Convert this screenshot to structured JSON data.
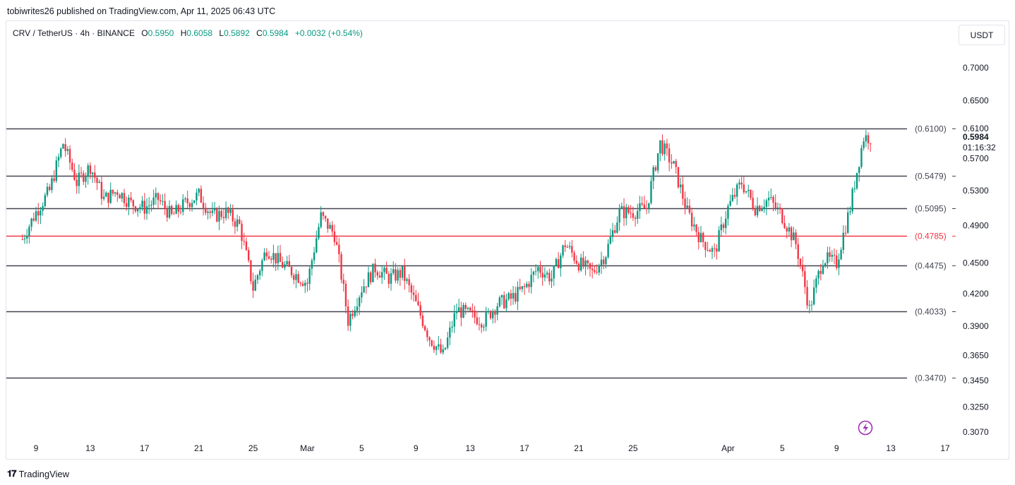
{
  "header": {
    "byline": "tobiwrites26 published on TradingView.com, Apr 11, 2025 06:43 UTC"
  },
  "legend": {
    "symbol": "CRV / TetherUS · 4h · BINANCE",
    "o_label": "O",
    "o": "0.5950",
    "h_label": "H",
    "h": "0.6058",
    "l_label": "L",
    "l": "0.5892",
    "c_label": "C",
    "c": "0.5984",
    "change": "+0.0032 (+0.54%)"
  },
  "currency_button": "USDT",
  "footer": {
    "logo_mark": "𝟏𝟕",
    "brand": "TradingView"
  },
  "colors": {
    "up": "#089981",
    "down": "#f23645",
    "level": "#434651",
    "key_level": "#f23645",
    "flash": "#9c27b0"
  },
  "chart_data": {
    "type": "candlestick",
    "symbol": "CRV / TetherUS",
    "timeframe": "4h",
    "exchange": "BINANCE",
    "y_axis": {
      "scale": "log",
      "range": [
        0.292,
        0.745
      ],
      "ticks": [
        "0.7000",
        "0.6500",
        "0.6100",
        "0.5700",
        "0.5300",
        "0.4900",
        "0.4500",
        "0.4200",
        "0.3900",
        "0.3650",
        "0.3450",
        "0.3250",
        "0.3070"
      ]
    },
    "x_axis": {
      "start_date": "2025-02-08",
      "end_date": "2025-04-18",
      "ticks": [
        {
          "label": "9",
          "date": "2025-02-09"
        },
        {
          "label": "13",
          "date": "2025-02-13"
        },
        {
          "label": "17",
          "date": "2025-02-17"
        },
        {
          "label": "21",
          "date": "2025-02-21"
        },
        {
          "label": "25",
          "date": "2025-02-25"
        },
        {
          "label": "Mar",
          "date": "2025-03-01"
        },
        {
          "label": "5",
          "date": "2025-03-05"
        },
        {
          "label": "9",
          "date": "2025-03-09"
        },
        {
          "label": "13",
          "date": "2025-03-13"
        },
        {
          "label": "17",
          "date": "2025-03-17"
        },
        {
          "label": "21",
          "date": "2025-03-21"
        },
        {
          "label": "25",
          "date": "2025-03-25"
        },
        {
          "label": "Apr",
          "date": "2025-04-01"
        },
        {
          "label": "5",
          "date": "2025-04-05"
        },
        {
          "label": "9",
          "date": "2025-04-09"
        },
        {
          "label": "13",
          "date": "2025-04-13"
        },
        {
          "label": "17",
          "date": "2025-04-17"
        }
      ]
    },
    "levels": [
      {
        "value": 0.61,
        "label": "(0.6100)",
        "color": "#434651"
      },
      {
        "value": 0.5479,
        "label": "(0.5479)",
        "color": "#434651"
      },
      {
        "value": 0.5095,
        "label": "(0.5095)",
        "color": "#434651"
      },
      {
        "value": 0.4785,
        "label": "(0.4785)",
        "color": "#f23645"
      },
      {
        "value": 0.4475,
        "label": "(0.4475)",
        "color": "#434651"
      },
      {
        "value": 0.4033,
        "label": "(0.4033)",
        "color": "#434651"
      },
      {
        "value": 0.347,
        "label": "(0.3470)",
        "color": "#434651"
      }
    ],
    "last_price": "0.5984",
    "countdown": "01:16:32",
    "path_anchors": [
      {
        "date": "2025-02-08",
        "price": 0.475
      },
      {
        "date": "2025-02-09",
        "price": 0.505
      },
      {
        "date": "2025-02-10",
        "price": 0.53
      },
      {
        "date": "2025-02-11",
        "price": 0.59
      },
      {
        "date": "2025-02-12",
        "price": 0.54
      },
      {
        "date": "2025-02-13",
        "price": 0.56
      },
      {
        "date": "2025-02-14",
        "price": 0.52
      },
      {
        "date": "2025-02-15",
        "price": 0.53
      },
      {
        "date": "2025-02-16",
        "price": 0.515
      },
      {
        "date": "2025-02-17",
        "price": 0.51
      },
      {
        "date": "2025-02-18",
        "price": 0.52
      },
      {
        "date": "2025-02-19",
        "price": 0.5
      },
      {
        "date": "2025-02-20",
        "price": 0.515
      },
      {
        "date": "2025-02-21",
        "price": 0.525
      },
      {
        "date": "2025-02-22",
        "price": 0.5
      },
      {
        "date": "2025-02-23",
        "price": 0.505
      },
      {
        "date": "2025-02-24",
        "price": 0.49
      },
      {
        "date": "2025-02-25",
        "price": 0.425
      },
      {
        "date": "2025-02-26",
        "price": 0.465
      },
      {
        "date": "2025-02-27",
        "price": 0.45
      },
      {
        "date": "2025-02-28",
        "price": 0.44
      },
      {
        "date": "2025-03-01",
        "price": 0.43
      },
      {
        "date": "2025-03-02",
        "price": 0.5
      },
      {
        "date": "2025-03-03",
        "price": 0.48
      },
      {
        "date": "2025-03-04",
        "price": 0.395
      },
      {
        "date": "2025-03-05",
        "price": 0.425
      },
      {
        "date": "2025-03-06",
        "price": 0.445
      },
      {
        "date": "2025-03-07",
        "price": 0.435
      },
      {
        "date": "2025-03-08",
        "price": 0.44
      },
      {
        "date": "2025-03-09",
        "price": 0.41
      },
      {
        "date": "2025-03-10",
        "price": 0.38
      },
      {
        "date": "2025-03-11",
        "price": 0.365
      },
      {
        "date": "2025-03-12",
        "price": 0.405
      },
      {
        "date": "2025-03-13",
        "price": 0.4
      },
      {
        "date": "2025-03-14",
        "price": 0.395
      },
      {
        "date": "2025-03-15",
        "price": 0.41
      },
      {
        "date": "2025-03-16",
        "price": 0.415
      },
      {
        "date": "2025-03-17",
        "price": 0.425
      },
      {
        "date": "2025-03-18",
        "price": 0.445
      },
      {
        "date": "2025-03-19",
        "price": 0.435
      },
      {
        "date": "2025-03-20",
        "price": 0.47
      },
      {
        "date": "2025-03-21",
        "price": 0.45
      },
      {
        "date": "2025-03-22",
        "price": 0.44
      },
      {
        "date": "2025-03-23",
        "price": 0.46
      },
      {
        "date": "2025-03-24",
        "price": 0.505
      },
      {
        "date": "2025-03-25",
        "price": 0.505
      },
      {
        "date": "2025-03-26",
        "price": 0.51
      },
      {
        "date": "2025-03-27",
        "price": 0.59
      },
      {
        "date": "2025-03-28",
        "price": 0.56
      },
      {
        "date": "2025-03-29",
        "price": 0.505
      },
      {
        "date": "2025-03-30",
        "price": 0.475
      },
      {
        "date": "2025-03-31",
        "price": 0.46
      },
      {
        "date": "2025-04-01",
        "price": 0.51
      },
      {
        "date": "2025-04-02",
        "price": 0.54
      },
      {
        "date": "2025-04-03",
        "price": 0.51
      },
      {
        "date": "2025-04-04",
        "price": 0.52
      },
      {
        "date": "2025-04-05",
        "price": 0.5
      },
      {
        "date": "2025-04-06",
        "price": 0.47
      },
      {
        "date": "2025-04-07",
        "price": 0.405
      },
      {
        "date": "2025-04-08",
        "price": 0.455
      },
      {
        "date": "2025-04-09",
        "price": 0.45
      },
      {
        "date": "2025-04-10",
        "price": 0.51
      },
      {
        "date": "2025-04-11",
        "price": 0.598
      }
    ]
  }
}
